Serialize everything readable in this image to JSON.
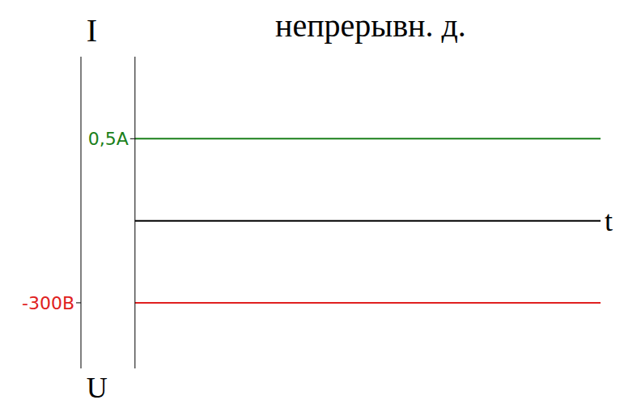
{
  "chart_data": {
    "type": "line",
    "title": "непрерывн. д.",
    "xlabel": "t",
    "ylabel": "I",
    "y2label": "U",
    "ylim": [
      -0.9,
      1
    ],
    "yticks": [
      {
        "value": 0.5,
        "label": "0,5A"
      }
    ],
    "y2lim": [
      -540,
      600
    ],
    "y2ticks": [
      {
        "value": -300,
        "label": "-300В"
      }
    ],
    "series": [
      {
        "color": "#1a7f1a",
        "values": [
          0.5,
          0.5
        ]
      },
      {
        "color": "#e02020",
        "values": [
          -300,
          -300
        ],
        "axis": "y2"
      }
    ]
  }
}
